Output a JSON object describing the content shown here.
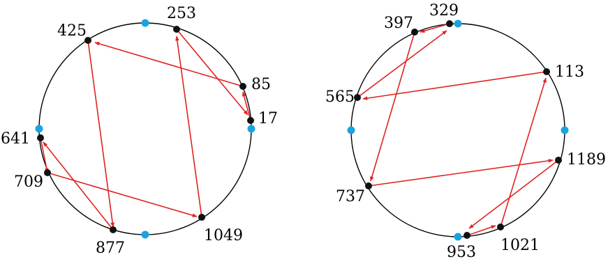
{
  "colors": {
    "circle": "#000000",
    "node": "#111111",
    "marker": "#1aa3e0",
    "arrow": "#e02222"
  },
  "left_cycle": {
    "labels": [
      "253",
      "85",
      "17",
      "1049",
      "877",
      "709",
      "641",
      "425"
    ],
    "arrows": [
      [
        "85",
        "425"
      ],
      [
        "425",
        "877"
      ],
      [
        "877",
        "641"
      ],
      [
        "641",
        "709"
      ],
      [
        "709",
        "1049"
      ],
      [
        "1049",
        "253"
      ],
      [
        "253",
        "17"
      ],
      [
        "17",
        "85"
      ]
    ]
  },
  "right_cycle": {
    "labels": [
      "329",
      "113",
      "1189",
      "1021",
      "953",
      "737",
      "565",
      "397"
    ],
    "arrows": [
      [
        "113",
        "565"
      ],
      [
        "565",
        "329"
      ],
      [
        "329",
        "397"
      ],
      [
        "397",
        "737"
      ],
      [
        "737",
        "1189"
      ],
      [
        "1189",
        "953"
      ],
      [
        "953",
        "1021"
      ],
      [
        "1021",
        "113"
      ]
    ]
  }
}
